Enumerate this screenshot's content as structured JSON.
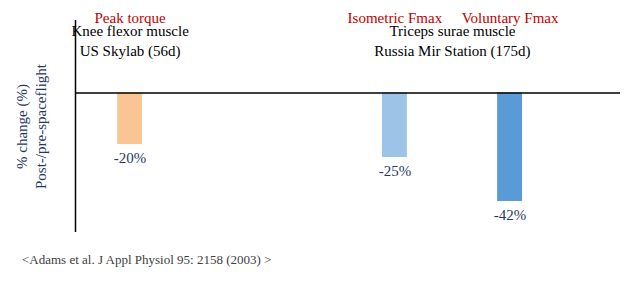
{
  "chart_data": {
    "type": "bar",
    "categories": [
      "Peak torque",
      "Isometric Fmax",
      "Voluntary Fmax"
    ],
    "values": [
      -20,
      -25,
      -42
    ],
    "value_labels": [
      "-20%",
      "-25%",
      "-42%"
    ],
    "colors": [
      "#f9c595",
      "#9dc3e6",
      "#5b9bd5"
    ],
    "ylabel": "% change (%)\nPost-/pre-spaceflight",
    "ylim": [
      -54,
      28
    ],
    "yticks": [],
    "tick_labels": false,
    "data_labels": true,
    "annotations": [
      {
        "text": "Knee flexor muscle\nUS Skylab (56d)",
        "categories": [
          "Peak torque"
        ]
      },
      {
        "text": "Triceps surae muscle\nRussia Mir Station (175d)",
        "categories": [
          "Isometric Fmax",
          "Voluntary Fmax"
        ]
      }
    ],
    "caption": "<Adams et al. J Appl Physiol 95: 2158 (2003) >"
  }
}
